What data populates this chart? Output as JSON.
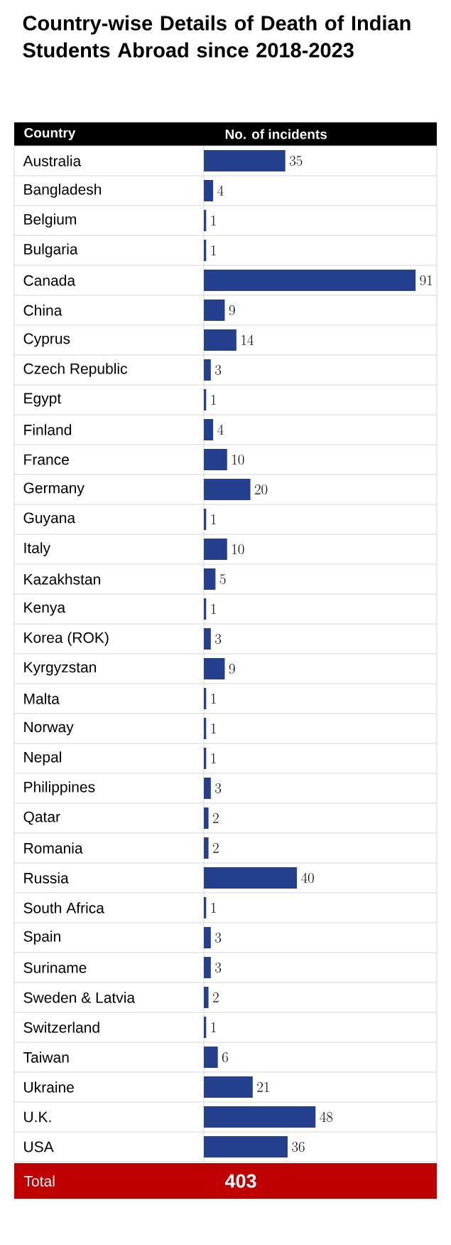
{
  "chart_data": {
    "type": "bar",
    "orientation": "horizontal",
    "title": "Country-wise Details of Death of Indian Students Abroad since 2018-2023",
    "ylabel": "Country",
    "xlabel": "No. of incidents",
    "categories": [
      "Australia",
      "Bangladesh",
      "Belgium",
      "Bulgaria",
      "Canada",
      "China",
      "Cyprus",
      "Czech Republic",
      "Egypt",
      "Finland",
      "France",
      "Germany",
      "Guyana",
      "Italy",
      "Kazakhstan",
      "Kenya",
      "Korea (ROK)",
      "Kyrgyzstan",
      "Malta",
      "Norway",
      "Nepal",
      "Philippines",
      "Qatar",
      "Romania",
      "Russia",
      "South Africa",
      "Spain",
      "Suriname",
      "Sweden & Latvia",
      "Switzerland",
      "Taiwan",
      "Ukraine",
      "U.K.",
      "USA"
    ],
    "values": [
      35,
      4,
      1,
      1,
      91,
      9,
      14,
      3,
      1,
      4,
      10,
      20,
      1,
      10,
      5,
      1,
      3,
      9,
      1,
      1,
      1,
      3,
      2,
      2,
      40,
      1,
      3,
      3,
      2,
      1,
      6,
      21,
      48,
      36
    ],
    "color": "#253f8f",
    "data_labels": true,
    "annotations": [
      "Total",
      "403"
    ]
  }
}
